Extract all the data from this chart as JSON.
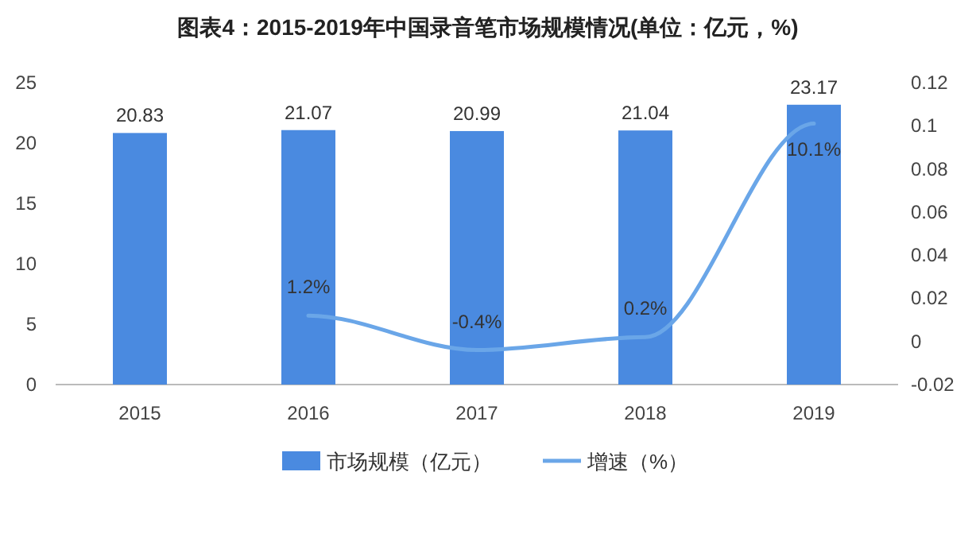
{
  "chart_data": {
    "type": "bar",
    "title": "图表4：2015-2019年中国录音笔市场规模情况(单位：亿元，%)",
    "categories": [
      "2015",
      "2016",
      "2017",
      "2018",
      "2019"
    ],
    "series": [
      {
        "name": "市场规模（亿元）",
        "color": "#4a8ae0",
        "values": [
          20.83,
          21.07,
          20.99,
          21.04,
          23.17
        ],
        "value_labels": [
          "20.83",
          "21.07",
          "20.99",
          "21.04",
          "23.17"
        ]
      },
      {
        "name": "增速（%）",
        "type": "line",
        "axis": "y2",
        "color": "#6aa6e8",
        "values": [
          null,
          0.012,
          -0.004,
          0.002,
          0.101
        ],
        "value_labels": [
          null,
          "1.2%",
          "-0.4%",
          "0.2%",
          "10.1%"
        ]
      }
    ],
    "ylim": [
      0,
      25
    ],
    "yticks": [
      0,
      5,
      10,
      15,
      20,
      25
    ],
    "y2lim": [
      -0.02,
      0.12
    ],
    "y2ticks": [
      -0.02,
      0,
      0.02,
      0.04,
      0.06,
      0.08,
      0.1,
      0.12
    ],
    "legend": "bottom",
    "marker": "none",
    "line_style": "solid"
  }
}
